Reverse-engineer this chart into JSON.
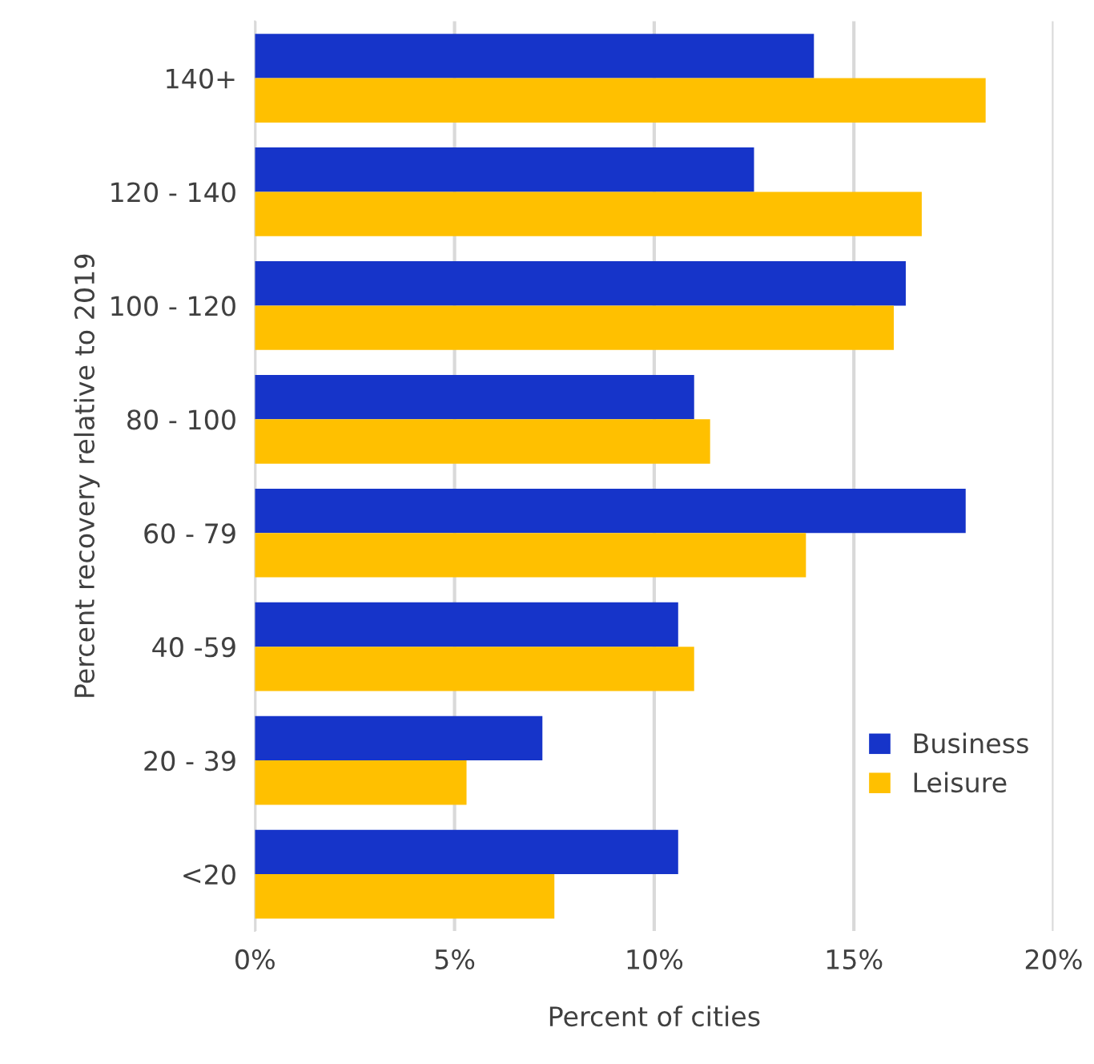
{
  "chart_data": {
    "type": "bar",
    "orientation": "horizontal",
    "xlabel": "Percent of cities",
    "ylabel": "Percent recovery relative to 2019",
    "categories": [
      "140+",
      "120 - 140",
      "100 - 120",
      "80 - 100",
      "60 - 79",
      "40 -59",
      "20 - 39",
      "<20"
    ],
    "series": [
      {
        "name": "Business",
        "color": "#1634c9",
        "values": [
          14.0,
          12.5,
          16.3,
          11.0,
          17.8,
          10.6,
          7.2,
          10.6
        ]
      },
      {
        "name": "Leisure",
        "color": "#ffc000",
        "values": [
          18.3,
          16.7,
          16.0,
          11.4,
          13.8,
          11.0,
          5.3,
          7.5
        ]
      }
    ],
    "xlim": [
      0,
      20
    ],
    "xticks": [
      {
        "value": 0,
        "label": "0%"
      },
      {
        "value": 5,
        "label": "5%"
      },
      {
        "value": 10,
        "label": "10%"
      },
      {
        "value": 15,
        "label": "15%"
      },
      {
        "value": 20,
        "label": "20%"
      }
    ],
    "grid": "x",
    "legend": "bottom right"
  }
}
